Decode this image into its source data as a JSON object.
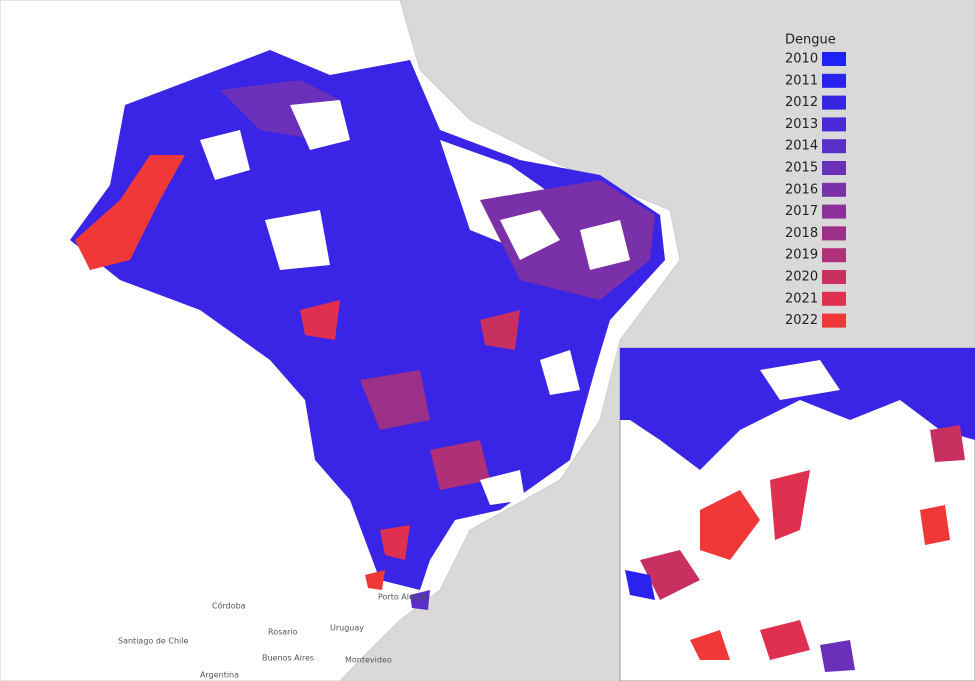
{
  "legend": {
    "title": "Dengue",
    "items": [
      {
        "label": "2010",
        "color": "#1f22f6"
      },
      {
        "label": "2011",
        "color": "#2a22ee"
      },
      {
        "label": "2012",
        "color": "#3626e2"
      },
      {
        "label": "2013",
        "color": "#4a2ad6"
      },
      {
        "label": "2014",
        "color": "#5a2ec8"
      },
      {
        "label": "2015",
        "color": "#6a30ba"
      },
      {
        "label": "2016",
        "color": "#7a30a8"
      },
      {
        "label": "2017",
        "color": "#8a3098"
      },
      {
        "label": "2018",
        "color": "#9c3088"
      },
      {
        "label": "2019",
        "color": "#b03078"
      },
      {
        "label": "2020",
        "color": "#c83060"
      },
      {
        "label": "2021",
        "color": "#e03050"
      },
      {
        "label": "2022",
        "color": "#f03838"
      }
    ]
  },
  "map_labels": [
    "Porto Alegre",
    "Uruguay",
    "Córdoba",
    "Rosario",
    "Buenos Aires",
    "Santiago de Chile",
    "Montevideo",
    "Argentina"
  ]
}
